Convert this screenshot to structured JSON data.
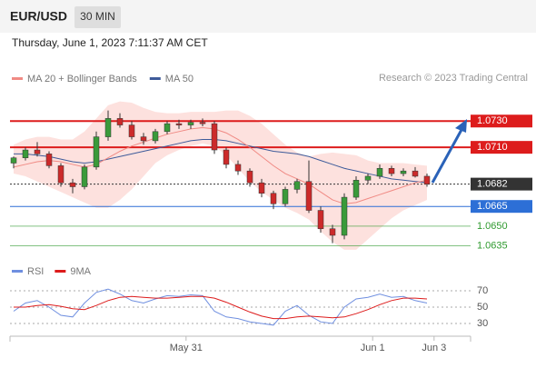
{
  "chart_data": {
    "type": "candlestick",
    "title": "EUR/USD",
    "timeframe": "30 MIN",
    "subtitle": "Thursday, June 1, 2023 7:11:37 AM CET",
    "credit": "Research © 2023 Trading Central",
    "legend": [
      {
        "name": "MA 20 + Bollinger Bands",
        "color": "#f08a84"
      },
      {
        "name": "MA 50",
        "color": "#3e5b9a"
      }
    ],
    "ylim": [
      1.0625,
      1.0753
    ],
    "xticks": [
      {
        "value": 14.6,
        "label": "May 31"
      },
      {
        "value": 30.4,
        "label": "Jun 1"
      },
      {
        "value": 35.6,
        "label": "Jun 3"
      }
    ],
    "up_color": "#3a9a3a",
    "down_color": "#cc2a2a",
    "open": [
      1.0698,
      1.0702,
      1.0708,
      1.0705,
      1.0696,
      1.0683,
      1.068,
      1.0695,
      1.0718,
      1.0732,
      1.0727,
      1.0718,
      1.0715,
      1.0722,
      1.0728,
      1.0727,
      1.0729,
      1.0728,
      1.0708,
      1.0697,
      1.0692,
      1.0683,
      1.0675,
      1.0667,
      1.0678,
      1.0684,
      1.0662,
      1.0648,
      1.0643,
      1.0672,
      1.0685,
      1.0688,
      1.0694,
      1.069,
      1.0692,
      1.0688
    ],
    "high": [
      1.0703,
      1.071,
      1.0714,
      1.0707,
      1.0698,
      1.0686,
      1.0697,
      1.0722,
      1.0738,
      1.0736,
      1.073,
      1.0721,
      1.0724,
      1.073,
      1.0731,
      1.0731,
      1.0732,
      1.073,
      1.071,
      1.07,
      1.0694,
      1.0686,
      1.0677,
      1.068,
      1.0686,
      1.07,
      1.0665,
      1.0651,
      1.0675,
      1.0688,
      1.069,
      1.0697,
      1.0696,
      1.0694,
      1.0695,
      1.069
    ],
    "low": [
      1.0694,
      1.07,
      1.0703,
      1.0694,
      1.068,
      1.0675,
      1.0678,
      1.0693,
      1.0715,
      1.0725,
      1.0716,
      1.0712,
      1.0713,
      1.072,
      1.0724,
      1.0724,
      1.0726,
      1.0705,
      1.0694,
      1.0689,
      1.068,
      1.0672,
      1.0663,
      1.0665,
      1.0675,
      1.066,
      1.0645,
      1.0637,
      1.064,
      1.067,
      1.0682,
      1.0686,
      1.0688,
      1.0688,
      1.0687,
      1.068
    ],
    "close": [
      1.0702,
      1.0708,
      1.0705,
      1.0696,
      1.0683,
      1.068,
      1.0695,
      1.0718,
      1.0732,
      1.0727,
      1.0718,
      1.0715,
      1.0722,
      1.0728,
      1.0727,
      1.0729,
      1.0728,
      1.0708,
      1.0697,
      1.0692,
      1.0683,
      1.0675,
      1.0667,
      1.0678,
      1.0684,
      1.0662,
      1.0648,
      1.0643,
      1.0672,
      1.0685,
      1.0688,
      1.0694,
      1.069,
      1.0692,
      1.0688,
      1.0682
    ],
    "ma20": [
      1.0695,
      1.0697,
      1.0699,
      1.07,
      1.0699,
      1.0697,
      1.0695,
      1.0697,
      1.0702,
      1.0707,
      1.0711,
      1.0714,
      1.0717,
      1.072,
      1.0722,
      1.0724,
      1.0725,
      1.0724,
      1.0721,
      1.0716,
      1.071,
      1.0703,
      1.0696,
      1.069,
      1.0686,
      1.0682,
      1.0676,
      1.067,
      1.0667,
      1.0668,
      1.0671,
      1.0674,
      1.0677,
      1.068,
      1.0683,
      1.0685
    ],
    "ma50": [
      1.0705,
      1.0705,
      1.0704,
      1.0703,
      1.0701,
      1.0699,
      1.0698,
      1.0699,
      1.0701,
      1.0703,
      1.0705,
      1.0707,
      1.0709,
      1.0711,
      1.0713,
      1.0715,
      1.0716,
      1.0716,
      1.0715,
      1.0713,
      1.0711,
      1.0709,
      1.0707,
      1.0706,
      1.0705,
      1.0703,
      1.07,
      1.0697,
      1.0694,
      1.0692,
      1.069,
      1.0688,
      1.0686,
      1.0685,
      1.0684,
      1.0683
    ],
    "bb_upper": [
      1.0712,
      1.0716,
      1.0718,
      1.0718,
      1.0716,
      1.0716,
      1.0722,
      1.0732,
      1.0742,
      1.0745,
      1.0744,
      1.074,
      1.0737,
      1.0736,
      1.0736,
      1.0737,
      1.0737,
      1.0737,
      1.0738,
      1.0738,
      1.0734,
      1.0728,
      1.072,
      1.0712,
      1.0706,
      1.0703,
      1.0705,
      1.0706,
      1.0705,
      1.0704,
      1.07,
      1.0698,
      1.0698,
      1.0698,
      1.0697,
      1.0696
    ],
    "bb_lower": [
      1.069,
      1.0688,
      1.0684,
      1.068,
      1.0676,
      1.0672,
      1.0668,
      1.0664,
      1.0664,
      1.067,
      1.0678,
      1.0688,
      1.0698,
      1.0704,
      1.0708,
      1.0711,
      1.0713,
      1.0711,
      1.0704,
      1.0694,
      1.0684,
      1.0676,
      1.067,
      1.0664,
      1.066,
      1.0655,
      1.0646,
      1.0638,
      1.0632,
      1.0632,
      1.064,
      1.0648,
      1.0656,
      1.0662,
      1.0666,
      1.067
    ],
    "levels": [
      {
        "value": 1.073,
        "label": "1.0730",
        "color": "#dd1c1c",
        "style": "box"
      },
      {
        "value": 1.071,
        "label": "1.0710",
        "color": "#dd1c1c",
        "style": "box"
      },
      {
        "value": 1.0682,
        "label": "1.0682",
        "color": "#333333",
        "style": "current"
      },
      {
        "value": 1.0665,
        "label": "1.0665",
        "color": "#2d6fd6",
        "style": "box"
      },
      {
        "value": 1.065,
        "label": "1.0650",
        "color": "#2f9a2f",
        "style": "text"
      },
      {
        "value": 1.0635,
        "label": "1.0635",
        "color": "#2f9a2f",
        "style": "text"
      }
    ],
    "rsi": {
      "legend": [
        {
          "name": "RSI",
          "color": "#6f8fe0"
        },
        {
          "name": "9MA",
          "color": "#dd1c1c"
        }
      ],
      "ylim": [
        20,
        80
      ],
      "yticks": [
        70,
        50,
        30
      ],
      "values": [
        45,
        55,
        58,
        50,
        40,
        38,
        55,
        68,
        72,
        66,
        58,
        55,
        60,
        64,
        63,
        65,
        64,
        45,
        38,
        36,
        32,
        30,
        28,
        45,
        52,
        40,
        32,
        30,
        50,
        60,
        62,
        66,
        62,
        63,
        58,
        55
      ],
      "ma": [
        50,
        50,
        52,
        53,
        51,
        48,
        47,
        52,
        58,
        62,
        63,
        62,
        61,
        61,
        62,
        63,
        63,
        61,
        56,
        50,
        44,
        39,
        36,
        36,
        38,
        39,
        38,
        37,
        38,
        42,
        47,
        53,
        58,
        61,
        61,
        60
      ]
    }
  }
}
